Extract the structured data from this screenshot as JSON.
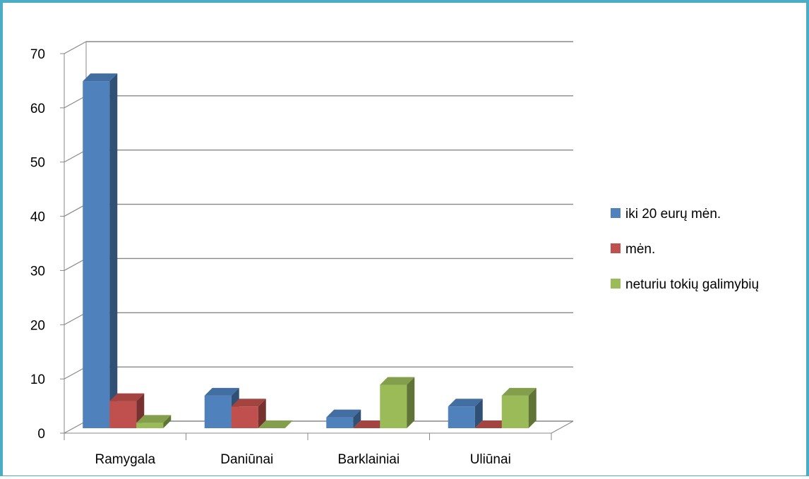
{
  "chart_data": {
    "type": "bar",
    "categories": [
      "Ramygala",
      "Daniūnai",
      "Barklainiai",
      "Uliūnai"
    ],
    "series": [
      {
        "name": "iki 20 eurų mėn.",
        "values": [
          64,
          6,
          2,
          4
        ],
        "color": "#4f81bd"
      },
      {
        "name": "mėn.",
        "values": [
          5,
          4,
          0,
          0
        ],
        "color": "#c0504d"
      },
      {
        "name": "neturiu tokių galimybių",
        "values": [
          1,
          0,
          8,
          6
        ],
        "color": "#9bbb59"
      }
    ],
    "ylim": [
      0,
      70
    ],
    "yticks": [
      0,
      10,
      20,
      30,
      40,
      50,
      60,
      70
    ],
    "grid": true,
    "legend_position": "right",
    "style": "3d-clustered-column"
  }
}
